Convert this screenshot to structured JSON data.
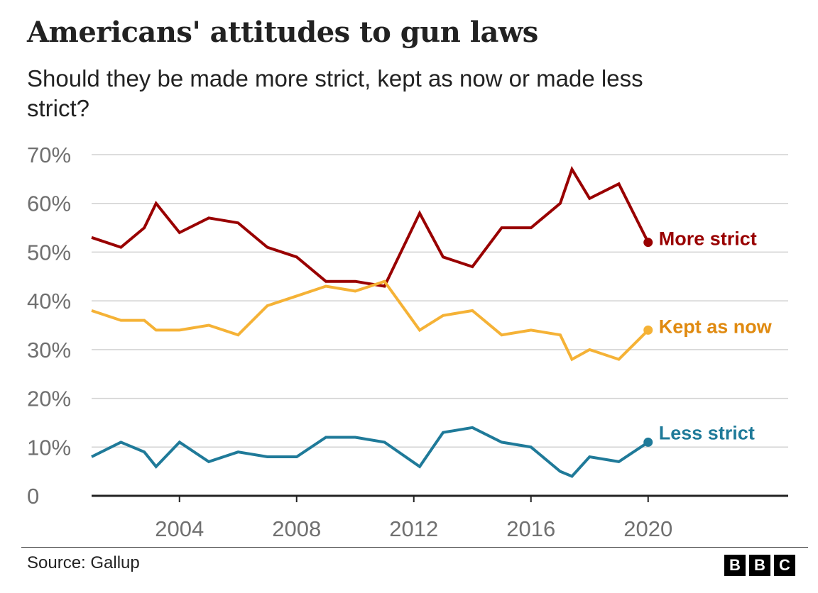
{
  "header": {
    "title": "Americans' attitudes to gun laws",
    "subtitle": "Should they be made more strict, kept as now or made less strict?"
  },
  "footer": {
    "source": "Source: Gallup",
    "logo": "BBC",
    "logo_letters": [
      "B",
      "B",
      "C"
    ]
  },
  "chart_data": {
    "type": "line",
    "title": "Americans' attitudes to gun laws",
    "subtitle": "Should they be made more strict, kept as now or made less strict?",
    "xlabel": "",
    "ylabel": "",
    "xlim": [
      2001,
      2024
    ],
    "ylim": [
      0,
      70
    ],
    "y_ticks": [
      0,
      10,
      20,
      30,
      40,
      50,
      60,
      70
    ],
    "y_tick_labels": [
      "0",
      "10%",
      "20%",
      "30%",
      "40%",
      "50%",
      "60%",
      "70%"
    ],
    "x_ticks": [
      2004,
      2008,
      2012,
      2016,
      2020
    ],
    "x_tick_labels": [
      "2004",
      "2008",
      "2012",
      "2016",
      "2020"
    ],
    "grid": true,
    "legend": "direct labels at line ends",
    "series": [
      {
        "name": "More strict",
        "color": "#990000",
        "label_color": "#990000",
        "x": [
          2001,
          2002,
          2002.8,
          2003.2,
          2004,
          2005,
          2006,
          2007,
          2008,
          2009,
          2010,
          2011,
          2012.2,
          2013,
          2014,
          2015,
          2016,
          2017,
          2017.4,
          2018,
          2019,
          2020
        ],
        "y": [
          53,
          51,
          55,
          60,
          54,
          57,
          56,
          51,
          49,
          44,
          44,
          43,
          58,
          49,
          47,
          55,
          55,
          60,
          67,
          61,
          64,
          52
        ]
      },
      {
        "name": "Kept as now",
        "color": "#f5b236",
        "label_color": "#e08a10",
        "x": [
          2001,
          2002,
          2002.8,
          2003.2,
          2004,
          2005,
          2006,
          2007,
          2008,
          2009,
          2010,
          2011,
          2012.2,
          2013,
          2014,
          2015,
          2016,
          2017,
          2017.4,
          2018,
          2019,
          2020
        ],
        "y": [
          38,
          36,
          36,
          34,
          34,
          35,
          33,
          39,
          41,
          43,
          42,
          44,
          34,
          37,
          38,
          33,
          34,
          33,
          28,
          30,
          28,
          34
        ]
      },
      {
        "name": "Less strict",
        "color": "#1f7a99",
        "label_color": "#1f7a99",
        "x": [
          2001,
          2002,
          2002.8,
          2003.2,
          2004,
          2005,
          2006,
          2007,
          2008,
          2009,
          2010,
          2011,
          2012.2,
          2013,
          2014,
          2015,
          2016,
          2017,
          2017.4,
          2018,
          2019,
          2020
        ],
        "y": [
          8,
          11,
          9,
          6,
          11,
          7,
          9,
          8,
          8,
          12,
          12,
          11,
          6,
          13,
          14,
          11,
          10,
          5,
          4,
          8,
          7,
          11
        ]
      }
    ]
  }
}
